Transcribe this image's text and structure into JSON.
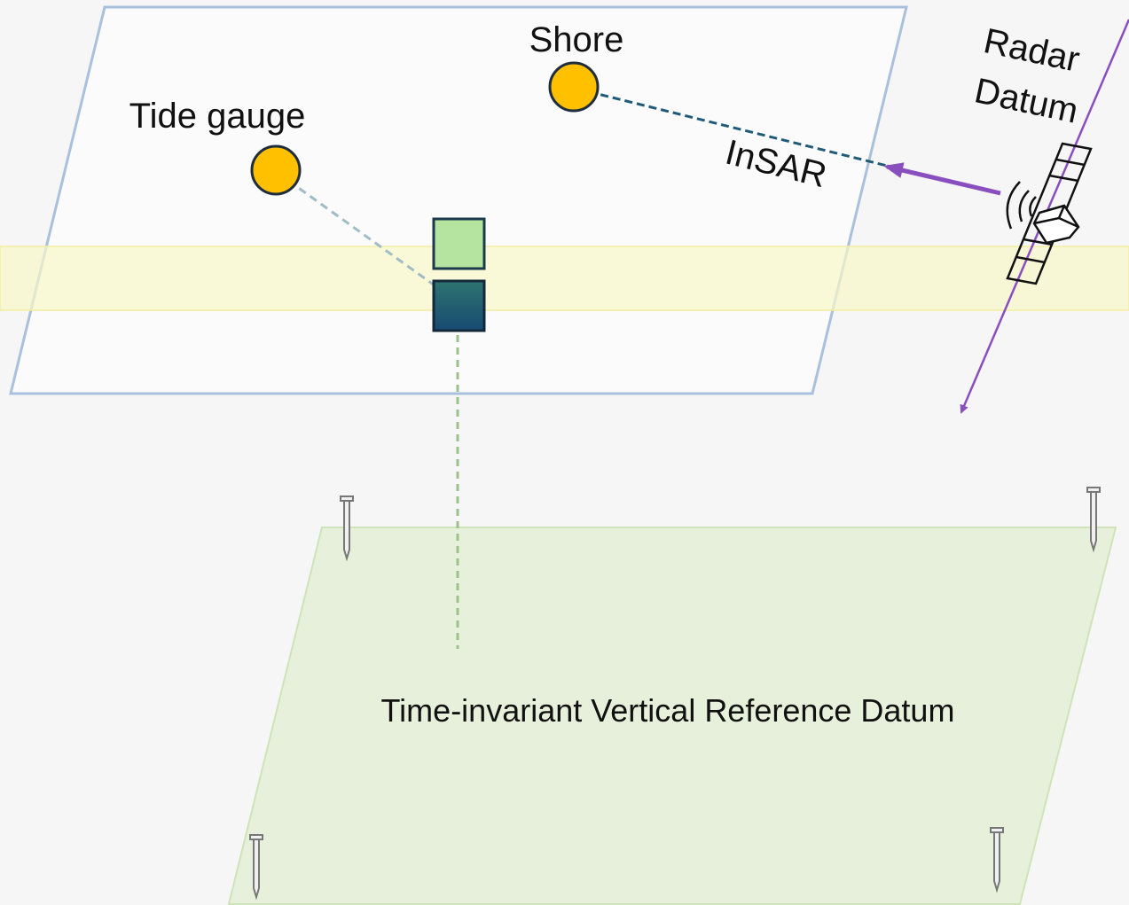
{
  "labels": {
    "shore": "Shore",
    "tide_gauge": "Tide gauge",
    "insar": "InSAR",
    "radar_datum": [
      "Radar",
      "Datum"
    ],
    "reference_datum": "Time-invariant Vertical Reference Datum"
  }
}
